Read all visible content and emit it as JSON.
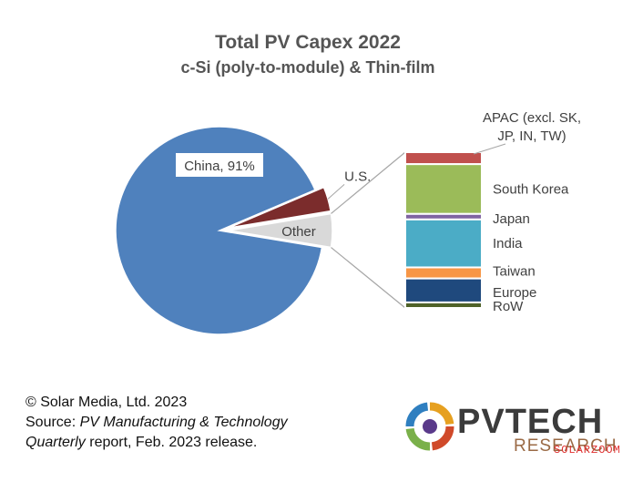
{
  "chart_data": {
    "type": "pie",
    "title": "Total PV Capex 2022",
    "subtitle": "c-Si (poly-to-module) & Thin-film",
    "slices": [
      {
        "label": "China, 91%",
        "name": "China",
        "value": 91,
        "color": "#4f81bd"
      },
      {
        "label": "U.S.",
        "name": "U.S.",
        "value": 3.8,
        "color": "#7b2c2c"
      },
      {
        "label": "Other",
        "name": "Other",
        "value": 5.2,
        "color": "#d9d9d9"
      }
    ],
    "breakdown": {
      "of": "Other",
      "segments": [
        {
          "label": "APAC (excl. SK, JP, IN, TW)",
          "line1": "APAC (excl. SK,",
          "line2": "JP, IN, TW)",
          "value": 6.5,
          "color": "#c0504d"
        },
        {
          "label": "South Korea",
          "value": 27,
          "color": "#9bbb59"
        },
        {
          "label": "Japan",
          "value": 3,
          "color": "#8064a2"
        },
        {
          "label": "India",
          "value": 26,
          "color": "#4bacc6"
        },
        {
          "label": "Taiwan",
          "value": 6,
          "color": "#f79646"
        },
        {
          "label": "Europe",
          "value": 13,
          "color": "#1f497d"
        },
        {
          "label": "RoW",
          "value": 3,
          "color": "#4f6228"
        }
      ]
    }
  },
  "footer": {
    "copyright": "© Solar Media, Ltd. 2023",
    "source_prefix": "Source: ",
    "source_italic": "PV Manufacturing & Technology",
    "line3_italic": "Quarterly",
    "line3_rest": " report, Feb. 2023 release."
  },
  "logo": {
    "name": "PVTECH",
    "sub": "RESEARCH",
    "watermark": "SOLARZOOM"
  }
}
